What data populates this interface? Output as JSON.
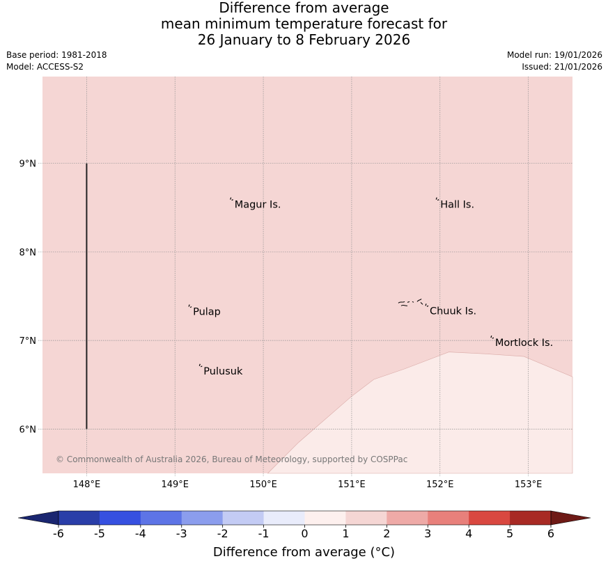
{
  "title": {
    "line1": "Difference from average",
    "line2": "mean minimum temperature forecast for",
    "line3": "26 January to 8 February 2026"
  },
  "meta": {
    "base_period": "Base period: 1981-2018",
    "model": "Model: ACCESS-S2",
    "model_run": "Model run: 19/01/2026",
    "issued": "Issued: 21/01/2026"
  },
  "map": {
    "lon_range": [
      147.5,
      153.5
    ],
    "lat_range": [
      5.5,
      9.98
    ],
    "lon_ticks": [
      148,
      149,
      150,
      151,
      152,
      153
    ],
    "lon_labels": [
      "148°E",
      "149°E",
      "150°E",
      "151°E",
      "152°E",
      "153°E"
    ],
    "lat_ticks": [
      9,
      8,
      7,
      6
    ],
    "lat_labels": [
      "9°N",
      "8°N",
      "7°N",
      "6°N"
    ],
    "fill_main": "#f5d6d4",
    "fill_low": "#fbebe9",
    "low_region_boundary": [
      [
        150.05,
        5.5
      ],
      [
        150.4,
        5.85
      ],
      [
        151.0,
        6.37
      ],
      [
        151.25,
        6.56
      ],
      [
        151.6,
        6.68
      ],
      [
        152.1,
        6.87
      ],
      [
        152.5,
        6.85
      ],
      [
        152.95,
        6.82
      ],
      [
        153.5,
        6.59
      ]
    ],
    "places": [
      {
        "name": "Magur Is.",
        "lon": 149.65,
        "lat": 8.56
      },
      {
        "name": "Hall Is.",
        "lon": 151.98,
        "lat": 8.56
      },
      {
        "name": "Pulap",
        "lon": 149.18,
        "lat": 7.35
      },
      {
        "name": "Chuuk Is.",
        "lon": 151.86,
        "lat": 7.36
      },
      {
        "name": "Mortlock Is.",
        "lon": 152.6,
        "lat": 7.0
      },
      {
        "name": "Pulusuk",
        "lon": 149.3,
        "lat": 6.68
      }
    ],
    "vertical_line": {
      "lon": 148.0,
      "lat_from": 6.0,
      "lat_to": 9.0
    },
    "copyright": "© Commonwealth of Australia 2026, Bureau of Meteorology, supported by COSPPac"
  },
  "colorbar": {
    "ticks": [
      "-6",
      "-5",
      "-4",
      "-3",
      "-2",
      "-1",
      "0",
      "1",
      "2",
      "3",
      "4",
      "5",
      "6"
    ],
    "colors": [
      "#2a3ea8",
      "#3650e0",
      "#5d74e6",
      "#8b9ded",
      "#c3cbf4",
      "#e9ecfb",
      "#fdf0ee",
      "#f5d6d4",
      "#eeaaa7",
      "#e8807b",
      "#d94840",
      "#a82a24"
    ],
    "under_color": "#1a2670",
    "over_color": "#6e1a16",
    "label": "Difference from average (°C)"
  }
}
